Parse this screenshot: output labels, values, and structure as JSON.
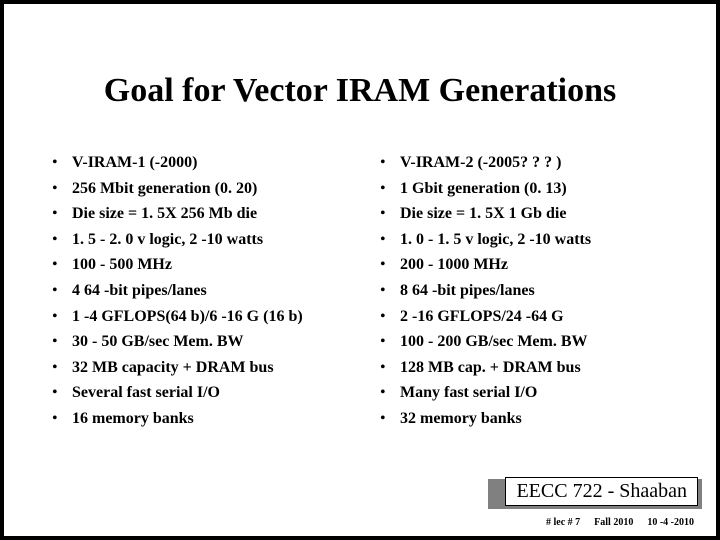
{
  "title": "Goal for Vector IRAM Generations",
  "left": {
    "items": [
      "V-IRAM-1 (-2000)",
      "256 Mbit generation (0. 20)",
      "Die size = 1. 5X 256 Mb die",
      "1. 5 - 2. 0 v logic, 2 -10 watts",
      "100 - 500 MHz",
      "4 64 -bit pipes/lanes",
      "1 -4 GFLOPS(64 b)/6 -16 G (16 b)",
      "30 - 50 GB/sec Mem. BW",
      "32 MB capacity + DRAM bus",
      "Several fast serial I/O",
      "16 memory banks"
    ]
  },
  "right": {
    "items": [
      "V-IRAM-2 (-2005? ? ? )",
      "1 Gbit generation (0. 13)",
      "Die size = 1. 5X 1 Gb die",
      "1. 0 - 1. 5 v logic, 2 -10 watts",
      "200 - 1000 MHz",
      "8 64 -bit pipes/lanes",
      "2 -16 GFLOPS/24 -64 G",
      "100 - 200 GB/sec Mem. BW",
      "128 MB cap. + DRAM bus",
      "Many fast serial I/O",
      "32 memory banks"
    ]
  },
  "footer": {
    "course": "EECC 722 - Shaaban",
    "page": "#  lec # 7",
    "term": "Fall 2010",
    "date": "10 -4 -2010"
  },
  "style": {
    "title_color": "#000000",
    "text_color": "#000000",
    "border_color": "#000000",
    "background": "#ffffff",
    "shadow_color": "#808080",
    "title_fontsize": 34,
    "body_fontsize": 16,
    "footer_fontsize": 20,
    "meta_fontsize": 10
  }
}
